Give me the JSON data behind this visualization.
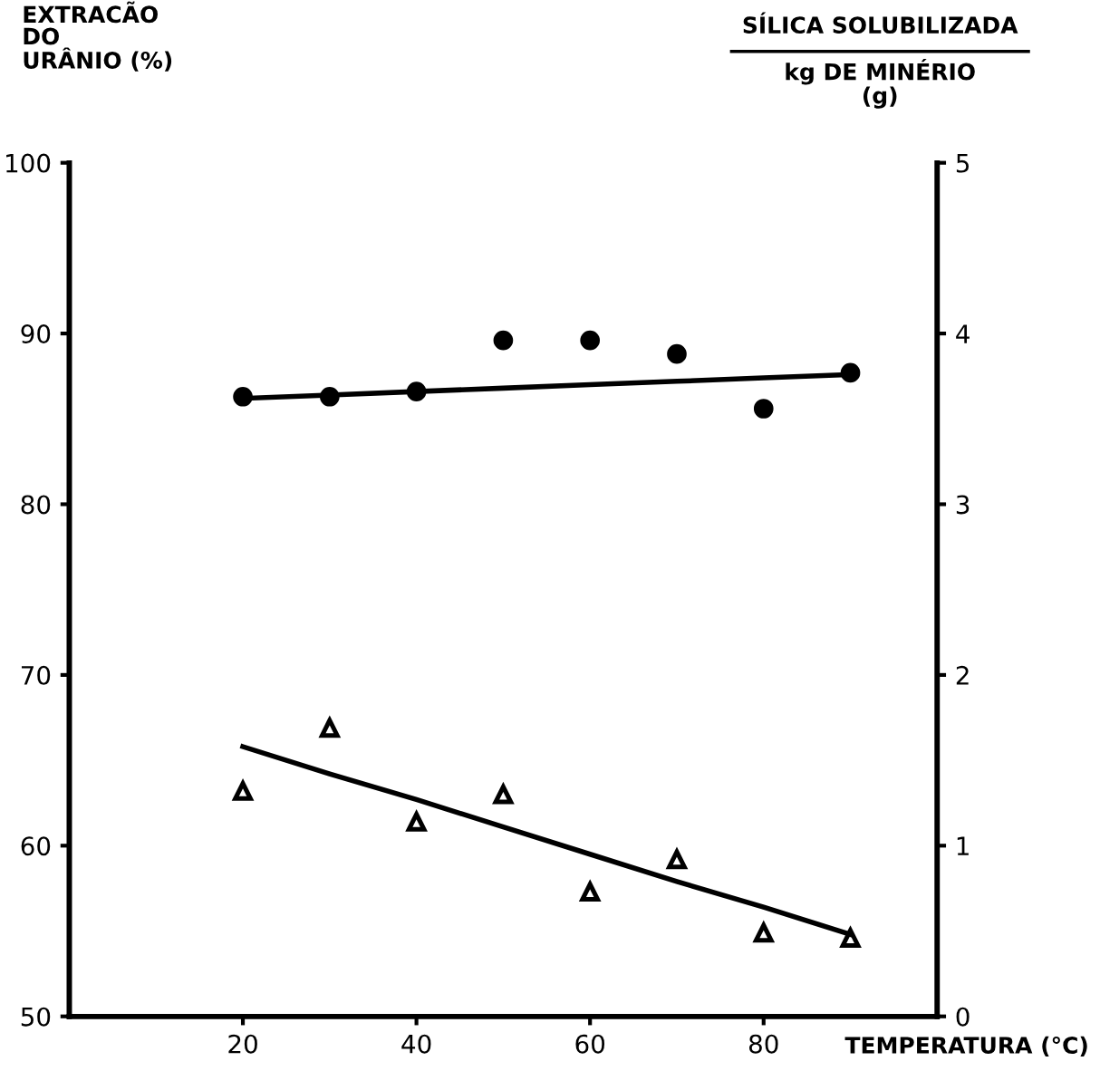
{
  "chart_data": {
    "type": "scatter",
    "xlabel": "TEMPERATURA (°C)",
    "ylabel": "EXTRACÃO\nDO\nURÂNIO (%)",
    "y2label": "SÍLICA SOLUBILIZADA\nkg DE MINÉRIO\n(g)",
    "x": [
      20,
      30,
      40,
      50,
      60,
      70,
      80,
      90
    ],
    "series": [
      {
        "color": "#000000",
        "marker": "circle",
        "values": [
          86.3,
          86.3,
          86.6,
          89.6,
          89.6,
          88.8,
          85.6,
          87.7
        ]
      },
      {
        "type": "line",
        "color": "#000000",
        "marker": "none",
        "values": [
          86.2,
          86.4,
          86.6,
          86.8,
          87.0,
          87.2,
          87.4,
          87.6
        ]
      },
      {
        "color": "#000000",
        "marker": "triangle",
        "axis": "y2",
        "values": [
          1.32,
          1.69,
          1.14,
          1.3,
          0.73,
          0.92,
          0.49,
          0.46
        ]
      },
      {
        "type": "line",
        "color": "#000000",
        "marker": "none",
        "axis": "y2",
        "values": [
          1.58,
          1.42,
          1.27,
          1.11,
          0.95,
          0.79,
          0.64,
          0.48
        ]
      }
    ],
    "xlim": [
      0,
      100
    ],
    "xticks": [
      20,
      40,
      60,
      80
    ],
    "ylim": [
      50,
      100
    ],
    "yticks": [
      50,
      60,
      70,
      80,
      90,
      100
    ],
    "y2lim": [
      0,
      5
    ],
    "y2ticks": [
      0,
      1,
      2,
      3,
      4,
      5
    ],
    "grid": false,
    "legend": false
  }
}
